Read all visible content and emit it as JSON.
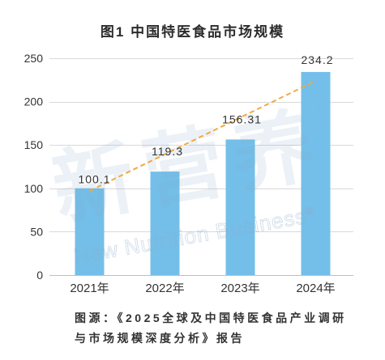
{
  "chart_data": {
    "type": "bar",
    "title": "图1 中国特医食品市场规模",
    "categories": [
      "2021年",
      "2022年",
      "2023年",
      "2024年"
    ],
    "values": [
      100.1,
      119.3,
      156.31,
      234.2
    ],
    "ylim": [
      0,
      250
    ],
    "yticks": [
      0,
      50,
      100,
      150,
      200,
      250
    ],
    "grid": true,
    "colors": {
      "bar": "#74bfe9",
      "trend_line": "#f3a93c",
      "gridline": "#d9d9d9",
      "axis": "#bfbfbf"
    },
    "trend_line": {
      "kind": "linear",
      "dashed": true,
      "start_value": 97,
      "end_value": 224
    },
    "source_note": [
      "图源：《2025全球及中国特医食品产业调研",
      "与市场规模深度分析》报告"
    ]
  },
  "watermark": {
    "text": "新营养",
    "subtext": "New Nutrition Business",
    "mark": "®"
  }
}
